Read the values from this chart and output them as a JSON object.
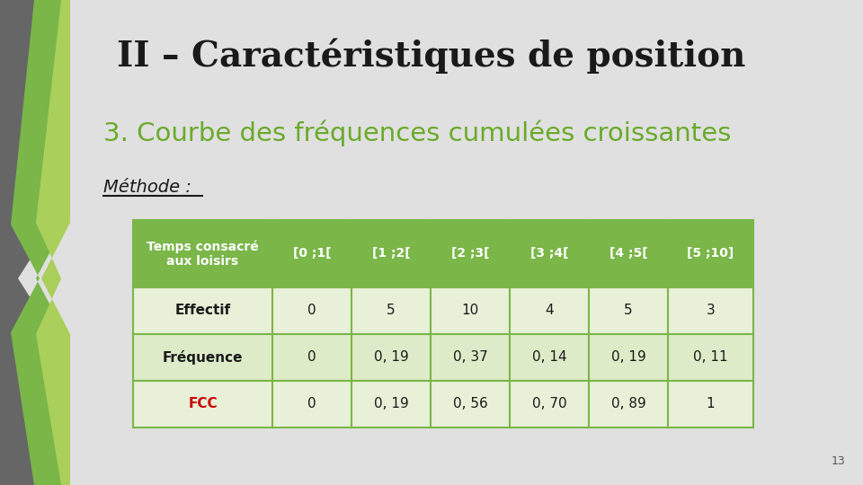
{
  "title": "II – Caractéristiques de position",
  "subtitle": "3. Courbe des fréquences cumulées croissantes",
  "methode_label": "Méthode :",
  "slide_bg": "#e0e0e0",
  "title_color": "#1a1a1a",
  "subtitle_color": "#6aaa2a",
  "methode_color": "#1a1a1a",
  "page_number": "13",
  "table": {
    "header_row": [
      "Temps consacré\naux loisirs",
      "[0 ;1[",
      "[1 ;2[",
      "[2 ;3[",
      "[3 ;4[",
      "[4 ;5[",
      "[5 ;10]"
    ],
    "rows": [
      [
        "Effectif",
        "0",
        "5",
        "10",
        "4",
        "5",
        "3"
      ],
      [
        "Fréquence",
        "0",
        "0, 19",
        "0, 37",
        "0, 14",
        "0, 19",
        "0, 11"
      ],
      [
        "FCC",
        "0",
        "0, 19",
        "0, 56",
        "0, 70",
        "0, 89",
        "1"
      ]
    ],
    "header_bg": "#7ab648",
    "header_text_color": "#ffffff",
    "row_bg_1": "#e8f0d8",
    "row_bg_2": "#deebc8",
    "row_bg_3": "#e8f0d8",
    "border_color": "#7ab648",
    "fcc_color": "#cc0000",
    "data_text_color": "#1a1a1a",
    "row_label_color": "#1a1a1a"
  },
  "chevron_gray": "#666666",
  "chevron_green": "#7ab648",
  "chevron_light": "#aacf5a"
}
